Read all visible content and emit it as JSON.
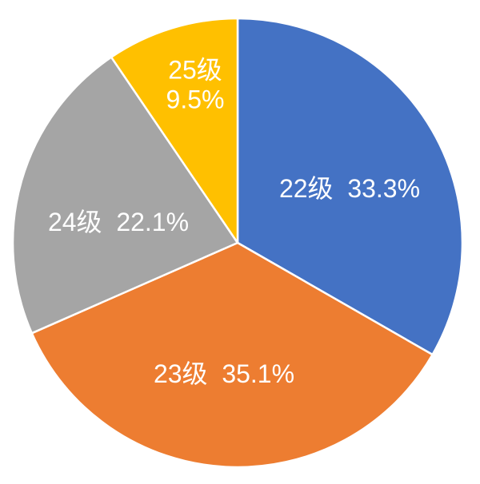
{
  "chart_data": {
    "type": "pie",
    "title": "",
    "categories": [
      "22级",
      "23级",
      "24级",
      "25级"
    ],
    "values": [
      33.3,
      35.1,
      22.1,
      9.5
    ],
    "unit": "percent",
    "colors": [
      "#4472C4",
      "#ED7D31",
      "#A5A5A5",
      "#FFC000"
    ],
    "slice_labels": [
      [
        "22级  33.3%"
      ],
      [
        "23级  35.1%"
      ],
      [
        "24级  22.1%"
      ],
      [
        "25级",
        "9.5%"
      ]
    ],
    "label_text_color": "#FFFFFF",
    "separator_color": "#FFFFFF",
    "background_color": "#FFFFFF",
    "start_angle_deg": 0,
    "direction": "clockwise",
    "label_position": "inside",
    "legend": "none"
  }
}
